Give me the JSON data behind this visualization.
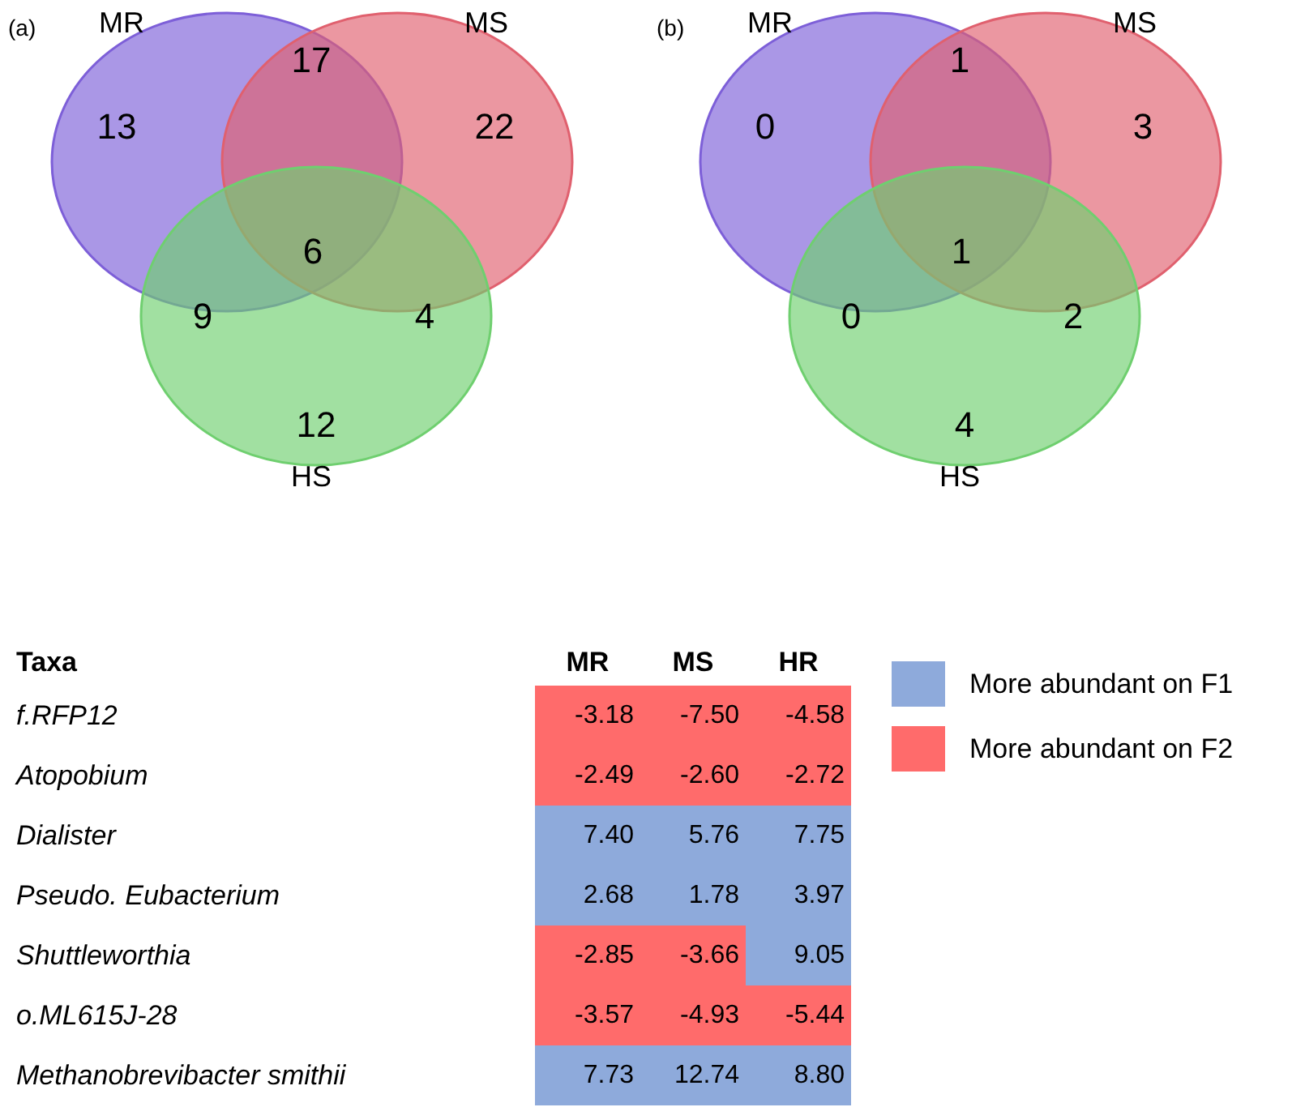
{
  "chart_data": [
    {
      "type": "other",
      "title": "(a)",
      "categories": [
        "MR",
        "MS",
        "HS"
      ],
      "colors": [
        "#7d5fd8",
        "#e0606e",
        "#6fcf6f"
      ],
      "annotations": [
        "13",
        "22",
        "12",
        "17",
        "9",
        "4",
        "6"
      ]
    },
    {
      "type": "other",
      "title": "(b)",
      "categories": [
        "MR",
        "MS",
        "HS"
      ],
      "colors": [
        "#7d5fd8",
        "#e0606e",
        "#6fcf6f"
      ],
      "annotations": [
        "0",
        "3",
        "4",
        "1",
        "0",
        "2",
        "1"
      ]
    },
    {
      "type": "heatmap",
      "ylabel": "Taxa",
      "categories": [
        "MR",
        "MS",
        "HR"
      ],
      "y_categories": [
        "f.RFP12",
        "Atopobium",
        "Dialister",
        "Pseudo. Eubacterium",
        "Shuttleworthia",
        "o.ML615J-28",
        "Methanobrevibacter smithii"
      ],
      "cells": [
        [
          -3.18,
          -7.5,
          -4.58
        ],
        [
          -2.49,
          -2.6,
          -2.72
        ],
        [
          7.4,
          5.76,
          7.75
        ],
        [
          2.68,
          1.78,
          3.97
        ],
        [
          -2.85,
          -3.66,
          9.05
        ],
        [
          -3.57,
          -4.93,
          -5.44
        ],
        [
          7.73,
          12.74,
          8.8
        ]
      ],
      "cell_labels": [
        [
          "-3.18",
          "-7.50",
          "-4.58"
        ],
        [
          "-2.49",
          "-2.60",
          "-2.72"
        ],
        [
          "7.40",
          "5.76",
          "7.75"
        ],
        [
          "2.68",
          "1.78",
          "3.97"
        ],
        [
          "-2.85",
          "-3.66",
          "9.05"
        ],
        [
          "-3.57",
          "-4.93",
          "-5.44"
        ],
        [
          "7.73",
          "12.74",
          "8.80"
        ]
      ],
      "colors": [
        "#8eaadb",
        "#ff6b6b"
      ],
      "annotations": [
        "More abundant on F1",
        "More abundant on F2"
      ],
      "data_labels": true
    }
  ]
}
